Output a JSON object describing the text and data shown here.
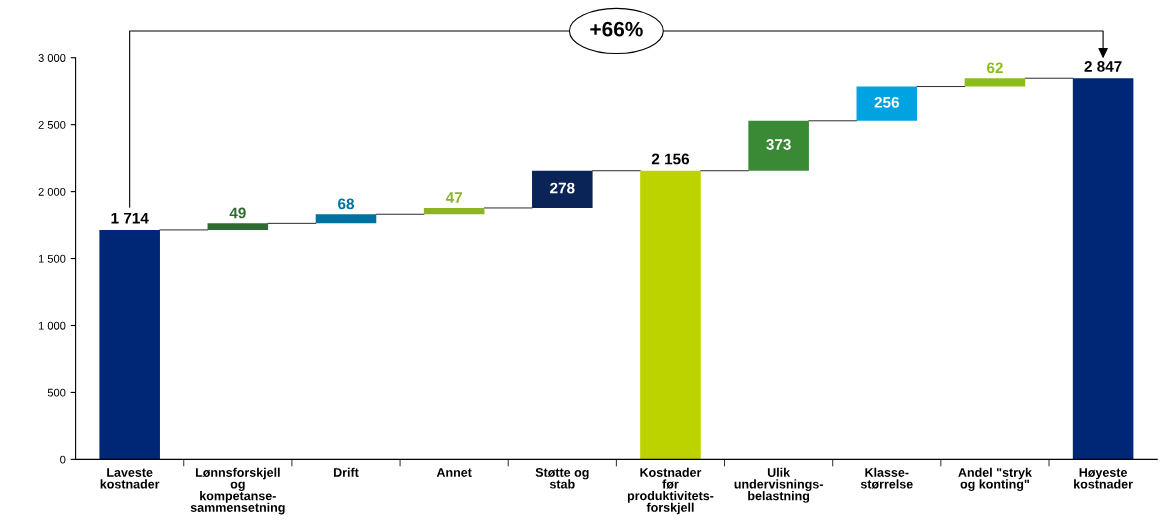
{
  "chart_data": {
    "type": "bar",
    "categories": [
      "Laveste kostnader",
      "Lønnsforskjell og kompetanse-sammensetning",
      "Drift",
      "Annet",
      "Støtte og stab",
      "Kostnader før produktivitets-forskjell",
      "Ulik undervisnings-belastning",
      "Klasse-størrelse",
      "Andel \"stryk og konting\"",
      "Høyeste kostnader"
    ],
    "values": [
      1714,
      49,
      68,
      47,
      278,
      2156,
      373,
      256,
      62,
      2847
    ],
    "base": [
      0,
      1714,
      1763,
      1831,
      1878,
      0,
      2156,
      2529,
      2785,
      0
    ],
    "colors": [
      "#002776",
      "#2e6b30",
      "#00729f",
      "#8db32a",
      "#0a2458",
      "#bdd300",
      "#3a8a35",
      "#00a3e0",
      "#8cbd1f",
      "#002776"
    ],
    "value_labels": [
      "1 714",
      "49",
      "68",
      "47",
      "278",
      "2 156",
      "373",
      "256",
      "62",
      "2 847"
    ],
    "ylim": [
      0,
      3000
    ],
    "yticks": [
      {
        "value": 0,
        "label": "0"
      },
      {
        "value": 500,
        "label": "500"
      },
      {
        "value": 1000,
        "label": "1 000"
      },
      {
        "value": 1500,
        "label": "1 500"
      },
      {
        "value": 2000,
        "label": "2 000"
      },
      {
        "value": 2500,
        "label": "2 500"
      },
      {
        "value": 3000,
        "label": "3 000"
      }
    ],
    "annotations": [
      "+66%"
    ],
    "grid": false
  }
}
